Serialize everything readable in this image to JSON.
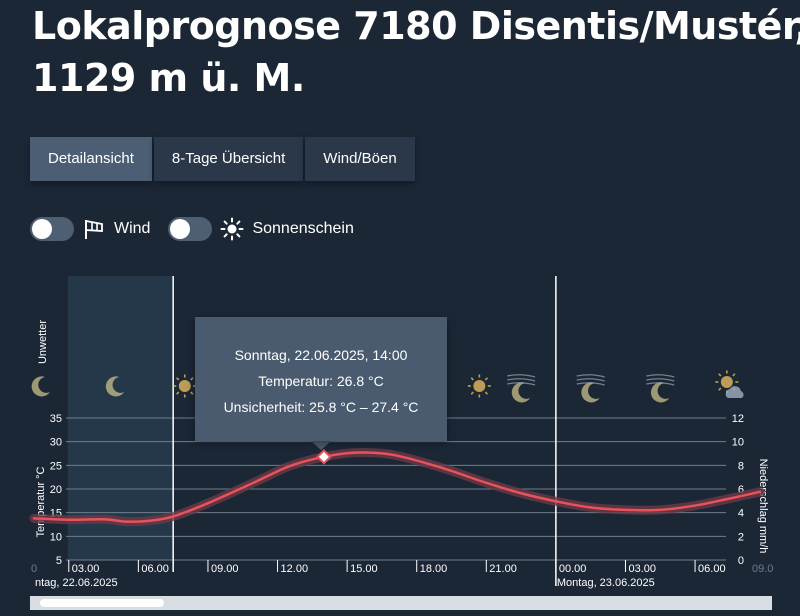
{
  "page": {
    "title_line1": "Lokalprognose 7180 Disentis/Mustér,",
    "title_line2": "1129 m ü. M."
  },
  "tabs": [
    {
      "label": "Detailansicht",
      "active": true
    },
    {
      "label": "8-Tage Übersicht",
      "active": false
    },
    {
      "label": "Wind/Böen",
      "active": false
    }
  ],
  "toggles": [
    {
      "label": "Wind",
      "icon": "windsock-icon",
      "on": false
    },
    {
      "label": "Sonnenschein",
      "icon": "sun-icon",
      "on": false
    }
  ],
  "tooltip": {
    "date": "Sonntag, 22.06.2025, 14:00",
    "temperature": "Temperatur: 26.8 °C",
    "uncertainty": "Unsicherheit: 25.8 °C – 27.4 °C"
  },
  "chart_data": {
    "type": "line",
    "unwetter_label": "Unwetter",
    "ylabel": "Temperatur °C",
    "y2label": "Niederschlag mm/h",
    "ylim": [
      5,
      35
    ],
    "yticks": [
      "5",
      "10",
      "15",
      "20",
      "25",
      "30",
      "35"
    ],
    "y2lim": [
      0,
      12
    ],
    "y2ticks": [
      "0",
      "2",
      "4",
      "6",
      "8",
      "10",
      "12"
    ],
    "xticks": [
      "03.00",
      "06.00",
      "09.00",
      "12.00",
      "15.00",
      "18.00",
      "21.00",
      "00.00",
      "03.00",
      "06.00"
    ],
    "xticks_hours": [
      3,
      6,
      9,
      12,
      15,
      18,
      21,
      24,
      27,
      30
    ],
    "xrange_hours": [
      1.5,
      32.8
    ],
    "day_labels": [
      {
        "text": "ntag, 22.06.2025",
        "hour": 1.5
      },
      {
        "text": "Montag, 23.06.2025",
        "hour": 24
      }
    ],
    "edge_labels": [
      "0",
      "09.0"
    ],
    "now_hour": 7.5,
    "past_start_hour": 3,
    "day_boundary_hour": 24,
    "highlight": {
      "x_hour": 14,
      "y": 26.8
    },
    "weather_icons": [
      {
        "hour": 1.8,
        "icon": "moon-icon"
      },
      {
        "hour": 5,
        "icon": "moon-icon"
      },
      {
        "hour": 8,
        "icon": "sun-icon"
      },
      {
        "hour": 20.7,
        "icon": "sun-icon"
      },
      {
        "hour": 22.5,
        "icon": "wind-moon-icon"
      },
      {
        "hour": 25.5,
        "icon": "wind-moon-icon"
      },
      {
        "hour": 28.5,
        "icon": "wind-moon-icon"
      },
      {
        "hour": 31.5,
        "icon": "sun-cloud-icon"
      }
    ],
    "series": [
      {
        "x": [
          1.5,
          3,
          4.5,
          5.5,
          6.5,
          7.5,
          9,
          11,
          12.5,
          14,
          15.5,
          17,
          19,
          21,
          22.5,
          24,
          25.5,
          27,
          28.5,
          30,
          31.5,
          32.8
        ],
        "y": [
          13.8,
          13.5,
          13.6,
          13.1,
          13.3,
          14.2,
          17.0,
          21.4,
          24.8,
          26.8,
          27.7,
          27.2,
          24.6,
          21.3,
          19.1,
          17.4,
          16.1,
          15.6,
          15.6,
          16.5,
          18.0,
          19.4
        ],
        "color": "#e8525a"
      }
    ],
    "colors": {
      "line": "#e8525a",
      "band": "#6b3a47",
      "grid": "#6e7c8c",
      "past_shade": "#25384a",
      "plot_bg": "#1c2736"
    }
  }
}
